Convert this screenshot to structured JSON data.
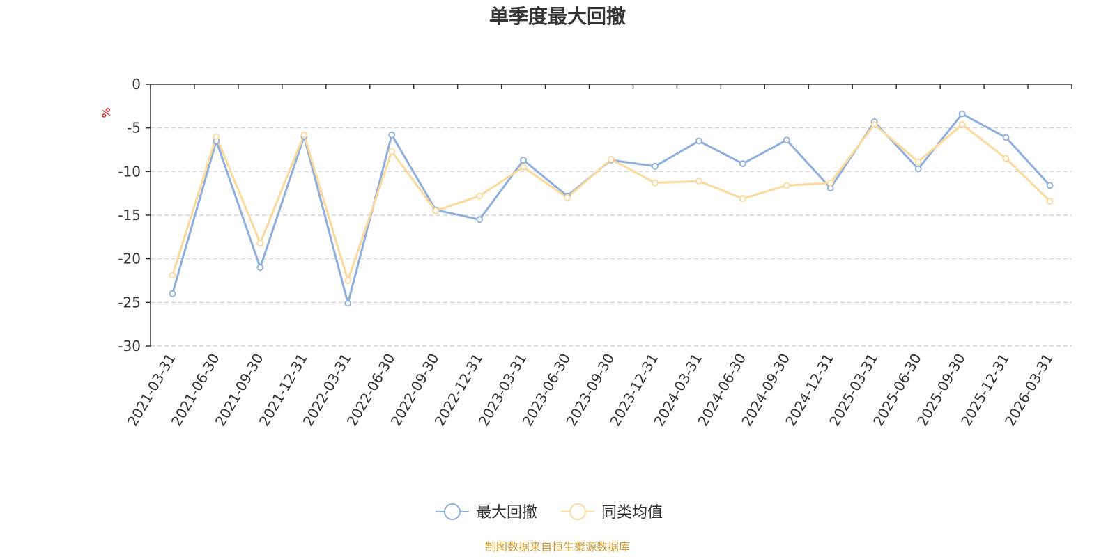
{
  "chart_data": {
    "type": "line",
    "title": "单季度最大回撤",
    "ylabel": "%",
    "ylim": [
      -30,
      0
    ],
    "yticks": [
      0,
      -5,
      -10,
      -15,
      -20,
      -25,
      -30
    ],
    "grid": true,
    "legend_position": "bottom",
    "categories": [
      "2021-03-31",
      "2021-06-30",
      "2021-09-30",
      "2021-12-31",
      "2022-03-31",
      "2022-06-30",
      "2022-09-30",
      "2022-12-31",
      "2023-03-31",
      "2023-06-30",
      "2023-09-30",
      "2023-12-31",
      "2024-03-31",
      "2024-06-30",
      "2024-09-30",
      "2024-12-31",
      "2025-03-31",
      "2025-06-30",
      "2025-09-30",
      "2025-12-31",
      "2026-03-31"
    ],
    "series": [
      {
        "name": "最大回撤",
        "color": "#8eaedd",
        "values": [
          -24.0,
          -6.5,
          -21.0,
          -6.0,
          -25.1,
          -5.8,
          -14.4,
          -15.5,
          -8.7,
          -12.8,
          -8.7,
          -9.4,
          -6.5,
          -9.1,
          -6.4,
          -11.9,
          -4.3,
          -9.7,
          -3.4,
          -6.1,
          -11.6
        ]
      },
      {
        "name": "同类均值",
        "color": "#fbd99a",
        "values": [
          -21.9,
          -6.0,
          -18.2,
          -5.8,
          -22.5,
          -7.7,
          -14.5,
          -12.8,
          -9.5,
          -13.0,
          -8.6,
          -11.3,
          -11.1,
          -13.1,
          -11.6,
          -11.3,
          -4.6,
          -8.9,
          -4.6,
          -8.5,
          -13.4
        ]
      }
    ]
  },
  "source_note": "制图数据来自恒生聚源数据库"
}
